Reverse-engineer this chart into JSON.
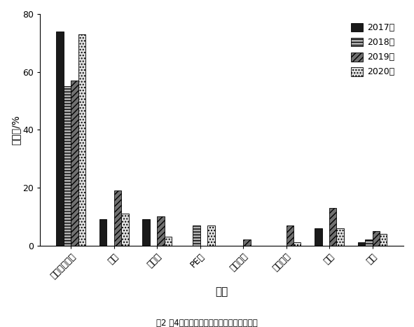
{
  "categories": [
    "钉筋混凝土管",
    "钓管",
    "波纹管",
    "PE管",
    "球墨镃管",
    "玻璃钓管",
    "筱浵",
    "其他"
  ],
  "years": [
    "2017年",
    "2018年",
    "2019年",
    "2020年"
  ],
  "values": {
    "2017年": [
      74,
      9,
      9,
      0,
      0,
      0,
      6,
      1
    ],
    "2018年": [
      55,
      0,
      0,
      7,
      0,
      0,
      0,
      2
    ],
    "2019年": [
      57,
      19,
      10,
      0,
      2,
      7,
      13,
      5
    ],
    "2020年": [
      73,
      11,
      3,
      7,
      0,
      1,
      6,
      4
    ]
  },
  "ylabel": "百分比/%",
  "xlabel": "管材",
  "title": "图2 近4年调查区不同管材类型的管道事故率",
  "ylim": [
    0,
    80
  ],
  "yticks": [
    0,
    20,
    40,
    60,
    80
  ],
  "figsize": [
    5.91,
    4.67
  ],
  "dpi": 100
}
